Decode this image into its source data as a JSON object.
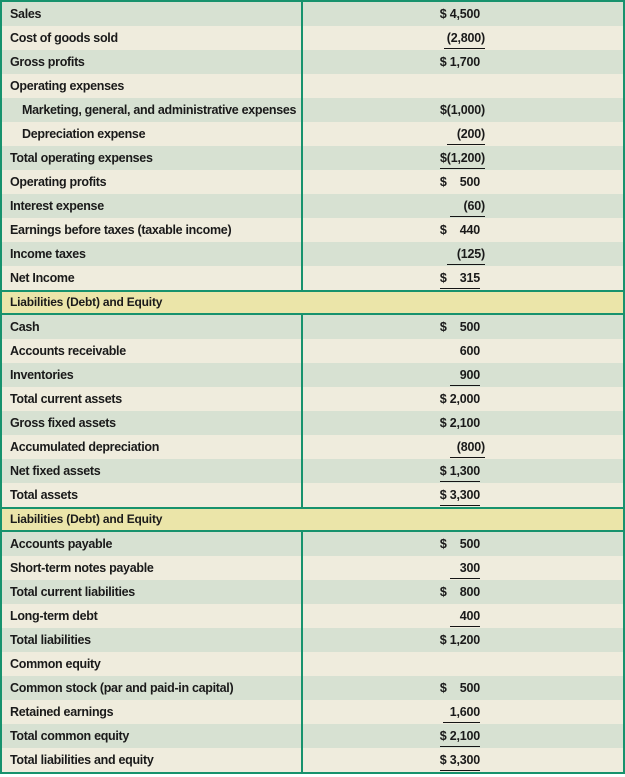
{
  "colors": {
    "row_green": "#d7e1d2",
    "row_cream": "#efecdd",
    "header_yellow": "#ebe5a9",
    "border_teal": "#17926d",
    "text": "#1a1a1a"
  },
  "sections": [
    {
      "type": "rows",
      "name": "income-statement",
      "rows": [
        {
          "label": "Sales",
          "value": "$ 4,500",
          "underline": false,
          "indent": false
        },
        {
          "label": "Cost of goods sold",
          "value": " (2,800)",
          "underline": true,
          "indent": false
        },
        {
          "label": "Gross profits",
          "value": "$ 1,700",
          "underline": false,
          "indent": false
        },
        {
          "label": "Operating expenses",
          "value": "",
          "underline": false,
          "indent": false
        },
        {
          "label": "Marketing, general, and administrative expenses",
          "value": "$(1,000)",
          "underline": false,
          "indent": true
        },
        {
          "label": "Depreciation expense",
          "value": "   (200)",
          "underline": true,
          "indent": true
        },
        {
          "label": "Total operating expenses",
          "value": "$(1,200)",
          "underline": true,
          "indent": false
        },
        {
          "label": "Operating profits",
          "value": "$    500",
          "underline": false,
          "indent": false
        },
        {
          "label": "Interest expense",
          "value": "    (60)",
          "underline": true,
          "indent": false
        },
        {
          "label": "Earnings before taxes (taxable income)",
          "value": "$    440",
          "underline": false,
          "indent": false
        },
        {
          "label": "Income taxes",
          "value": "   (125)",
          "underline": true,
          "indent": false
        },
        {
          "label": "Net Income",
          "value": "$    315",
          "underline": true,
          "indent": false
        }
      ]
    },
    {
      "type": "header",
      "label": "Liabilities (Debt) and Equity"
    },
    {
      "type": "rows",
      "name": "assets",
      "rows": [
        {
          "label": "Cash",
          "value": "$    500",
          "underline": false,
          "indent": false
        },
        {
          "label": "Accounts receivable",
          "value": "600",
          "underline": false,
          "indent": false
        },
        {
          "label": "Inventories",
          "value": "   900",
          "underline": true,
          "indent": false
        },
        {
          "label": "Total current assets",
          "value": "$ 2,000",
          "underline": false,
          "indent": false
        },
        {
          "label": "Gross fixed assets",
          "value": "$ 2,100",
          "underline": false,
          "indent": false
        },
        {
          "label": "Accumulated depreciation",
          "value": "  (800)",
          "underline": true,
          "indent": false
        },
        {
          "label": "Net fixed assets",
          "value": "$ 1,300",
          "underline": true,
          "indent": false
        },
        {
          "label": "Total assets",
          "value": "$ 3,300",
          "underline": true,
          "indent": false
        }
      ]
    },
    {
      "type": "header",
      "label": "Liabilities (Debt) and Equity"
    },
    {
      "type": "rows",
      "name": "liabilities-and-equity",
      "rows": [
        {
          "label": "Accounts payable",
          "value": "$    500",
          "underline": false,
          "indent": false
        },
        {
          "label": "Short-term notes payable",
          "value": "   300",
          "underline": true,
          "indent": false
        },
        {
          "label": "Total current liabilities",
          "value": "$    800",
          "underline": false,
          "indent": false
        },
        {
          "label": "Long-term debt",
          "value": "   400",
          "underline": true,
          "indent": false
        },
        {
          "label": "Total liabilities",
          "value": "$ 1,200",
          "underline": false,
          "indent": false
        },
        {
          "label": "Common equity",
          "value": "",
          "underline": false,
          "indent": false
        },
        {
          "label": "Common stock (par and paid-in capital)",
          "value": "$    500",
          "underline": false,
          "indent": false
        },
        {
          "label": "Retained earnings",
          "value": "  1,600",
          "underline": true,
          "indent": false
        },
        {
          "label": "Total common equity",
          "value": "$ 2,100",
          "underline": true,
          "indent": false
        },
        {
          "label": "Total liabilities and equity",
          "value": "$ 3,300",
          "underline": true,
          "indent": false
        }
      ]
    }
  ]
}
